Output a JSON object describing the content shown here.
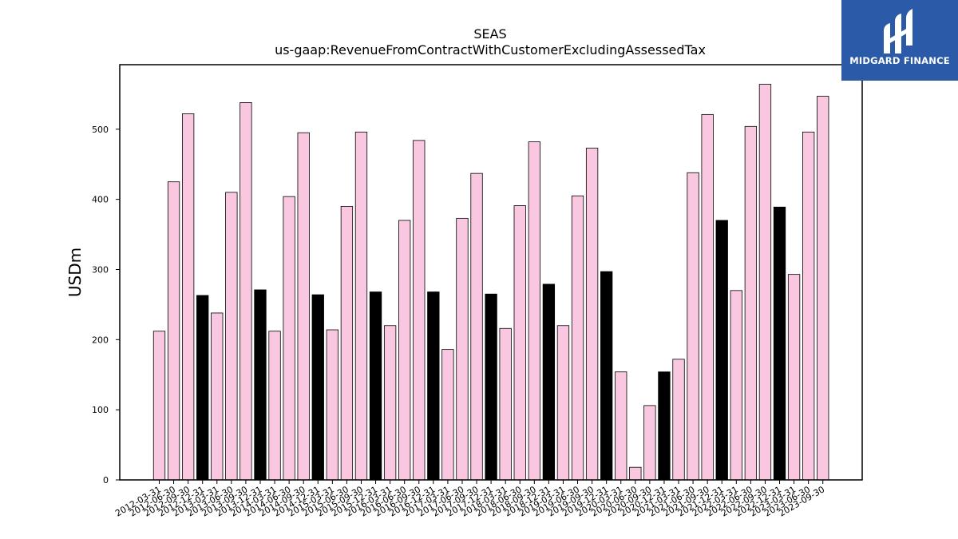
{
  "brand": {
    "name": "MIDGARD FINANCE",
    "color": "#2b5aa8",
    "icon": "midgard-logo-icon"
  },
  "chart_data": {
    "type": "bar",
    "title": "SEAS",
    "subtitle": "us-gaap:RevenueFromContractWithCustomerExcludingAssessedTax",
    "xlabel": "",
    "ylabel": "USDm",
    "ylim": [
      0,
      592
    ],
    "yticks": [
      0,
      100,
      200,
      300,
      400,
      500
    ],
    "grid": false,
    "colors": {
      "quarter": "#f9c8e0",
      "annual": "#000000",
      "edge": "#000000"
    },
    "categories": [
      "2012-03-31",
      "2012-06-30",
      "2012-09-30",
      "2012-12-31",
      "2013-03-31",
      "2013-06-30",
      "2013-09-30",
      "2013-12-31",
      "2014-03-31",
      "2014-06-30",
      "2014-09-30",
      "2014-12-31",
      "2015-03-31",
      "2015-06-30",
      "2015-09-30",
      "2015-12-31",
      "2016-03-31",
      "2016-06-30",
      "2016-09-30",
      "2016-12-31",
      "2017-03-31",
      "2017-06-30",
      "2017-09-30",
      "2017-12-31",
      "2018-03-31",
      "2018-06-30",
      "2018-09-30",
      "2018-12-31",
      "2019-03-31",
      "2019-06-30",
      "2019-09-30",
      "2019-12-31",
      "2020-03-31",
      "2020-06-30",
      "2020-09-30",
      "2020-12-31",
      "2021-03-31",
      "2021-06-30",
      "2021-09-30",
      "2021-12-31",
      "2022-03-31",
      "2022-06-30",
      "2022-09-30",
      "2022-12-31",
      "2023-03-31",
      "2023-06-30",
      "2023-09-30"
    ],
    "values": [
      212,
      425,
      522,
      263,
      238,
      410,
      538,
      271,
      212,
      404,
      495,
      264,
      214,
      390,
      496,
      268,
      220,
      370,
      484,
      268,
      186,
      373,
      437,
      265,
      216,
      391,
      482,
      279,
      220,
      405,
      473,
      297,
      154,
      18,
      106,
      154,
      172,
      438,
      521,
      370,
      270,
      504,
      564,
      389,
      293,
      496,
      547
    ],
    "annual_flags": [
      false,
      false,
      false,
      true,
      false,
      false,
      false,
      true,
      false,
      false,
      false,
      true,
      false,
      false,
      false,
      true,
      false,
      false,
      false,
      true,
      false,
      false,
      false,
      true,
      false,
      false,
      false,
      true,
      false,
      false,
      false,
      true,
      false,
      false,
      false,
      true,
      false,
      false,
      false,
      true,
      false,
      false,
      false,
      true,
      false,
      false,
      false
    ]
  }
}
